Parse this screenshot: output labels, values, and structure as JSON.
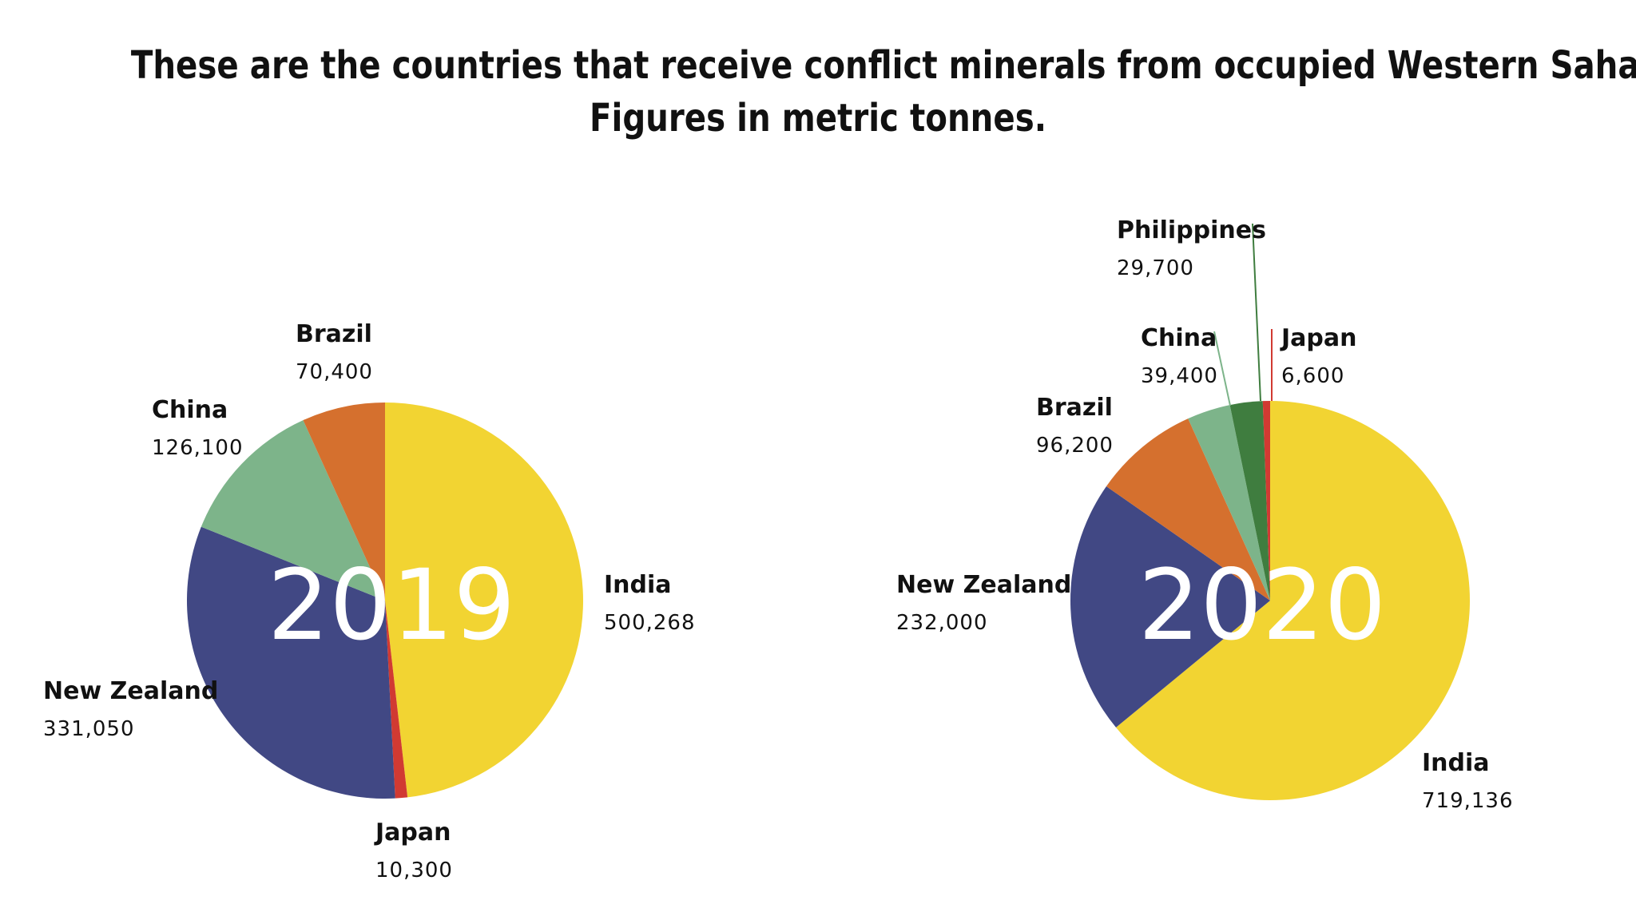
{
  "title": "These are the countries that receive conflict minerals from occupied Western Sahara",
  "subtitle": "Figures in metric tonnes.",
  "colors": {
    "India": "#f2d432",
    "Japan": "#d13a32",
    "New Zealand": "#414884",
    "China": "#7db48a",
    "Brazil": "#d5702e",
    "Philippines": "#3f7d3f"
  },
  "chart_data": [
    {
      "type": "pie",
      "title": "2019",
      "start_angle_deg": 0,
      "direction": "clockwise",
      "slices": [
        {
          "label": "India",
          "value": 500268,
          "value_label": "500,268"
        },
        {
          "label": "Japan",
          "value": 10300,
          "value_label": "10,300"
        },
        {
          "label": "New Zealand",
          "value": 331050,
          "value_label": "331,050"
        },
        {
          "label": "China",
          "value": 126100,
          "value_label": "126,100"
        },
        {
          "label": "Brazil",
          "value": 70400,
          "value_label": "70,400"
        }
      ]
    },
    {
      "type": "pie",
      "title": "2020",
      "start_angle_deg": 0,
      "direction": "clockwise",
      "slices": [
        {
          "label": "India",
          "value": 719136,
          "value_label": "719,136"
        },
        {
          "label": "New Zealand",
          "value": 232000,
          "value_label": "232,000"
        },
        {
          "label": "Brazil",
          "value": 96200,
          "value_label": "96,200"
        },
        {
          "label": "China",
          "value": 39400,
          "value_label": "39,400"
        },
        {
          "label": "Philippines",
          "value": 29700,
          "value_label": "29,700"
        },
        {
          "label": "Japan",
          "value": 6600,
          "value_label": "6,600"
        }
      ]
    }
  ]
}
